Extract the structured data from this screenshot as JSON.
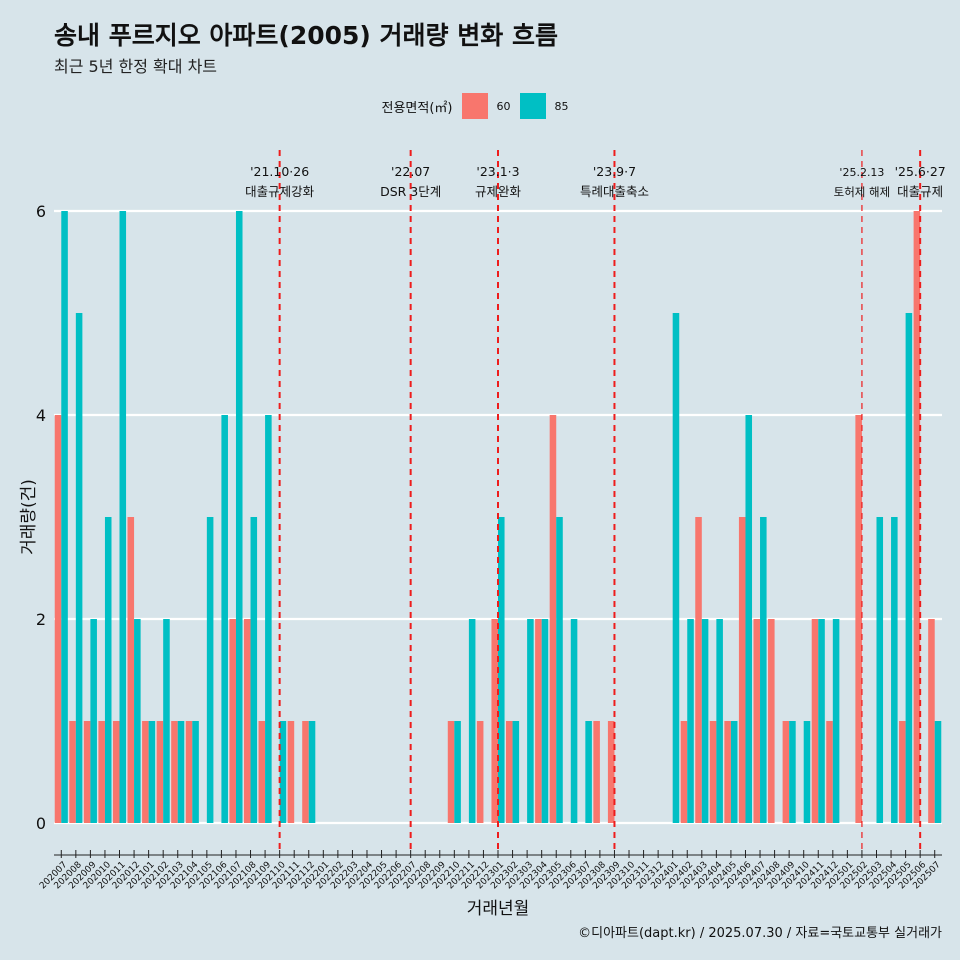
{
  "header": {
    "title": "송내 푸르지오 아파트(2005) 거래량 변화 흐름",
    "subtitle": "최근 5년 한정 확대 차트"
  },
  "legend": {
    "title": "전용면적(㎡)",
    "items": [
      {
        "label": "60",
        "color": "#f8766d"
      },
      {
        "label": "85",
        "color": "#00bfc4"
      }
    ]
  },
  "caption": "©디아파트(dapt.kr) / 2025.07.30 / 자료=국토교통부 실거래가",
  "chart_data": {
    "type": "bar",
    "xlabel": "거래년월",
    "ylabel": "거래량(건)",
    "ylim": [
      0,
      6
    ],
    "yticks": [
      0,
      2,
      4,
      6
    ],
    "grid": true,
    "legend_position": "top",
    "categories": [
      "202007",
      "202008",
      "202009",
      "202010",
      "202011",
      "202012",
      "202101",
      "202102",
      "202103",
      "202104",
      "202105",
      "202106",
      "202107",
      "202108",
      "202109",
      "202110",
      "202111",
      "202112",
      "202201",
      "202202",
      "202203",
      "202204",
      "202205",
      "202206",
      "202207",
      "202208",
      "202209",
      "202210",
      "202211",
      "202212",
      "202301",
      "202302",
      "202303",
      "202304",
      "202305",
      "202306",
      "202307",
      "202308",
      "202309",
      "202310",
      "202311",
      "202312",
      "202401",
      "202402",
      "202403",
      "202404",
      "202405",
      "202406",
      "202407",
      "202408",
      "202409",
      "202410",
      "202411",
      "202412",
      "202501",
      "202502",
      "202503",
      "202504",
      "202505",
      "202506",
      "202507"
    ],
    "series": [
      {
        "name": "60",
        "color": "#f8766d",
        "values": [
          4,
          1,
          1,
          1,
          1,
          3,
          1,
          1,
          1,
          1,
          0,
          0,
          2,
          2,
          1,
          0,
          1,
          1,
          0,
          0,
          0,
          0,
          0,
          0,
          0,
          0,
          0,
          1,
          0,
          1,
          2,
          1,
          0,
          2,
          4,
          0,
          0,
          1,
          1,
          0,
          0,
          0,
          0,
          1,
          3,
          1,
          1,
          3,
          2,
          2,
          1,
          0,
          2,
          1,
          0,
          4,
          0,
          0,
          1,
          6,
          2
        ]
      },
      {
        "name": "85",
        "color": "#00bfc4",
        "values": [
          6,
          5,
          2,
          3,
          6,
          2,
          1,
          2,
          1,
          1,
          3,
          4,
          6,
          3,
          4,
          1,
          0,
          1,
          0,
          0,
          0,
          0,
          0,
          0,
          0,
          0,
          0,
          1,
          2,
          0,
          3,
          1,
          2,
          2,
          3,
          2,
          1,
          0,
          0,
          0,
          0,
          0,
          5,
          2,
          2,
          2,
          1,
          4,
          3,
          0,
          1,
          1,
          2,
          2,
          0,
          0,
          3,
          3,
          5,
          0,
          1
        ]
      }
    ],
    "annotations": [
      {
        "category": "202110",
        "date": "'21.10·26",
        "label": "대출규제강화",
        "style": "bold"
      },
      {
        "category": "202207",
        "date": "'22.07",
        "label": "DSR 3단계",
        "style": "bold"
      },
      {
        "category": "202301",
        "date": "'23.1·3",
        "label": "규제완화",
        "style": "bold"
      },
      {
        "category": "202309",
        "date": "'23.9·7",
        "label": "특례대출축소",
        "style": "bold"
      },
      {
        "category": "202502",
        "date": "'25.2.13",
        "label": "토허제 해제",
        "style": "thin"
      },
      {
        "category": "202506",
        "date": "'25.6·27",
        "label": "대출규제",
        "style": "bold"
      }
    ]
  }
}
